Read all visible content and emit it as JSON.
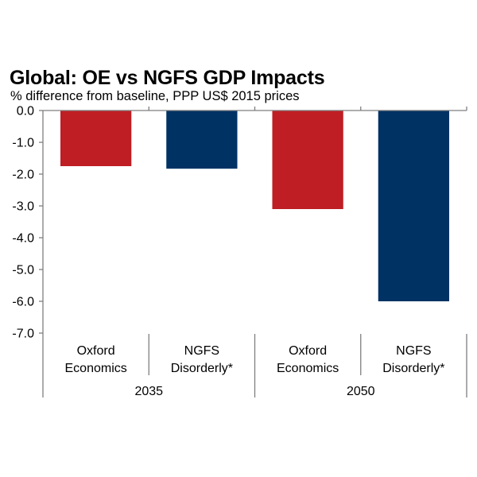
{
  "chart_data": {
    "type": "bar",
    "title": "Global: OE vs NGFS GDP Impacts",
    "subtitle": "% difference from baseline, PPP US$ 2015 prices",
    "xlabel": "",
    "ylabel": "",
    "ylim": [
      -7.0,
      0.0
    ],
    "yticks": [
      0.0,
      -1.0,
      -2.0,
      -3.0,
      -4.0,
      -5.0,
      -6.0,
      -7.0
    ],
    "ytick_labels": [
      "0.0",
      "-1.0",
      "-2.0",
      "-3.0",
      "-4.0",
      "-5.0",
      "-6.0",
      "-7.0"
    ],
    "grid": false,
    "legend": "none",
    "groups": [
      {
        "label": "2035",
        "categories": [
          {
            "label_lines": [
              "Oxford",
              "Economics"
            ],
            "value": -1.75,
            "color": "#BE1E24"
          },
          {
            "label_lines": [
              "NGFS",
              "Disorderly*"
            ],
            "value": -1.83,
            "color": "#003264"
          }
        ]
      },
      {
        "label": "2050",
        "categories": [
          {
            "label_lines": [
              "Oxford",
              "Economics"
            ],
            "value": -3.1,
            "color": "#BE1E24"
          },
          {
            "label_lines": [
              "NGFS",
              "Disorderly*"
            ],
            "value": -6.0,
            "color": "#003264"
          }
        ]
      }
    ]
  }
}
